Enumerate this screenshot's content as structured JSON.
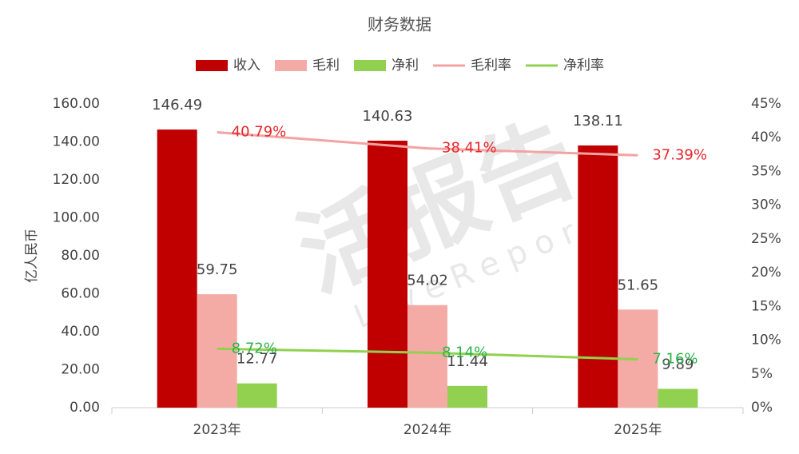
{
  "chart_data": {
    "type": "bar",
    "title": "财务数据",
    "y_label": "亿人民币",
    "watermark": "活报告",
    "watermark_sub": "LiveReport",
    "categories": [
      "2023年",
      "2024年",
      "2025年"
    ],
    "series": [
      {
        "name": "收入",
        "type": "bar",
        "color": "#c00000",
        "values": [
          146.49,
          140.63,
          138.11
        ]
      },
      {
        "name": "毛利",
        "type": "bar",
        "color": "#f4aba5",
        "values": [
          59.75,
          54.02,
          51.65
        ]
      },
      {
        "name": "净利",
        "type": "bar",
        "color": "#92d050",
        "values": [
          12.77,
          11.44,
          9.89
        ]
      },
      {
        "name": "毛利率",
        "type": "line",
        "axis": "y2",
        "color": "#f4a3a3",
        "label_color": "#e8262a",
        "values": [
          40.79,
          38.41,
          37.39
        ],
        "value_labels": [
          "40.79%",
          "38.41%",
          "37.39%"
        ]
      },
      {
        "name": "净利率",
        "type": "line",
        "axis": "y2",
        "color": "#92d050",
        "label_color": "#2bb24c",
        "values": [
          8.72,
          8.14,
          7.16
        ],
        "value_labels": [
          "8.72%",
          "8.14%",
          "7.16%"
        ]
      }
    ],
    "ylim": [
      0,
      160
    ],
    "yticks": [
      {
        "value": 0,
        "label": "0.00"
      },
      {
        "value": 20,
        "label": "20.00"
      },
      {
        "value": 40,
        "label": "40.00"
      },
      {
        "value": 60,
        "label": "60.00"
      },
      {
        "value": 80,
        "label": "80.00"
      },
      {
        "value": 100,
        "label": "100.00"
      },
      {
        "value": 120,
        "label": "120.00"
      },
      {
        "value": 140,
        "label": "140.00"
      },
      {
        "value": 160,
        "label": "160.00"
      }
    ],
    "y2lim": [
      0,
      45
    ],
    "y2ticks": [
      {
        "value": 0,
        "label": "0%"
      },
      {
        "value": 5,
        "label": "5%"
      },
      {
        "value": 10,
        "label": "10%"
      },
      {
        "value": 15,
        "label": "15%"
      },
      {
        "value": 20,
        "label": "20%"
      },
      {
        "value": 25,
        "label": "25%"
      },
      {
        "value": 30,
        "label": "30%"
      },
      {
        "value": 35,
        "label": "35%"
      },
      {
        "value": 40,
        "label": "40%"
      },
      {
        "value": 45,
        "label": "45%"
      }
    ],
    "grid": false
  }
}
